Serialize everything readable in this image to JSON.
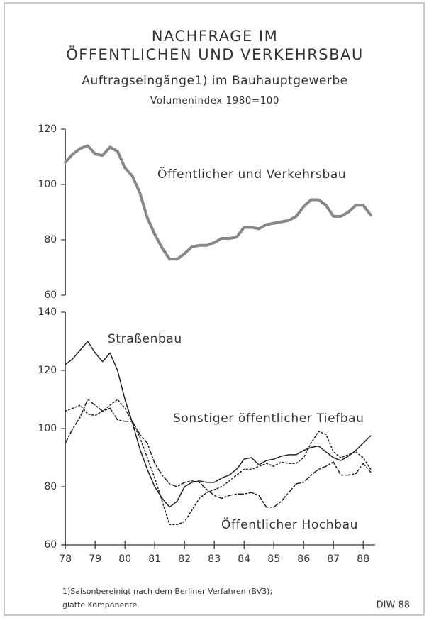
{
  "title": [
    "NACHFRAGE IM",
    "ÖFFENTLICHEN UND VERKEHRSBAU"
  ],
  "subtitle": "Auftragseingänge1) im Bauhauptgewerbe",
  "note": "Volumenindex 1980=100",
  "footnote": [
    "1)Saisonbereinigt nach dem Berliner Verfahren (BV3);",
    "glatte Komponente."
  ],
  "source": "DIW 88",
  "chart_data": [
    {
      "type": "line",
      "x": [
        78,
        78.25,
        78.5,
        78.75,
        79,
        79.25,
        79.5,
        79.75,
        80,
        80.25,
        80.5,
        80.75,
        81,
        81.25,
        81.5,
        81.75,
        82,
        82.25,
        82.5,
        82.75,
        83,
        83.25,
        83.5,
        83.75,
        84,
        84.25,
        84.5,
        84.75,
        85,
        85.25,
        85.5,
        85.75,
        86,
        86.25,
        86.5,
        86.75,
        87,
        87.25,
        87.5,
        87.75,
        88,
        88.25
      ],
      "xlim": [
        77.9,
        88.4
      ],
      "ylim": [
        60,
        120
      ],
      "yticks": [
        60,
        80,
        100,
        120
      ],
      "series": [
        {
          "name": "Öffentlicher und Verkehrsbau",
          "color": "#888888",
          "dash": "solid",
          "line_width": 4,
          "values": [
            108,
            111,
            113,
            114,
            111,
            110.5,
            113.5,
            112,
            106,
            103,
            97,
            88,
            82,
            77,
            73,
            73,
            75,
            77.5,
            78,
            78,
            79,
            80.5,
            80.5,
            81,
            84.5,
            84.5,
            84,
            85.5,
            86,
            86.5,
            87,
            88.5,
            92,
            94.5,
            94.5,
            92.5,
            88.5,
            88.5,
            90,
            92.5,
            92.5,
            89
          ]
        }
      ]
    },
    {
      "type": "line",
      "x": [
        78,
        78.25,
        78.5,
        78.75,
        79,
        79.25,
        79.5,
        79.75,
        80,
        80.25,
        80.5,
        80.75,
        81,
        81.25,
        81.5,
        81.75,
        82,
        82.25,
        82.5,
        82.75,
        83,
        83.25,
        83.5,
        83.75,
        84,
        84.25,
        84.5,
        84.75,
        85,
        85.25,
        85.5,
        85.75,
        86,
        86.25,
        86.5,
        86.75,
        87,
        87.25,
        87.5,
        87.75,
        88,
        88.25
      ],
      "xlim": [
        77.9,
        88.4
      ],
      "xticks": [
        78,
        79,
        80,
        81,
        82,
        83,
        84,
        85,
        86,
        87,
        88
      ],
      "ylim": [
        60,
        140
      ],
      "yticks": [
        60,
        80,
        100,
        120,
        140
      ],
      "series": [
        {
          "name": "Straßenbau",
          "color": "#222222",
          "dash": "solid",
          "line_width": 1.5,
          "values": [
            122,
            124,
            127,
            130,
            126,
            123,
            126,
            120,
            110,
            102,
            93,
            86,
            80,
            76,
            73,
            75,
            80,
            81.5,
            82,
            81.5,
            81.5,
            83,
            84,
            86,
            89.5,
            90,
            87.5,
            89,
            89.5,
            90.5,
            91,
            91,
            92.5,
            93.5,
            94,
            92,
            90,
            89,
            90.5,
            92.5,
            95,
            97.5
          ]
        },
        {
          "name": "Sonstiger öffentlicher Tiefbau",
          "color": "#222222",
          "dash": "dotted",
          "line_width": 1.5,
          "values": [
            106,
            107,
            108,
            105,
            104.5,
            106,
            108,
            110,
            107,
            102,
            97,
            90,
            83,
            75,
            67,
            67,
            68,
            72,
            76,
            78,
            79,
            80,
            82,
            84,
            86,
            86,
            87,
            88,
            87,
            88.5,
            88,
            88,
            90,
            95,
            99,
            98,
            92,
            90,
            91,
            92,
            90,
            86
          ]
        },
        {
          "name": "Öffentlicher Hochbau",
          "color": "#222222",
          "dash": "dashdot",
          "line_width": 1.5,
          "values": [
            95,
            100,
            104,
            110,
            108,
            106,
            107,
            103,
            102.5,
            102.5,
            98,
            95,
            88,
            84,
            81,
            80,
            81.5,
            82,
            81.5,
            79,
            77,
            76,
            77,
            77.5,
            77.5,
            78,
            77,
            73,
            73,
            75,
            78,
            81,
            81.5,
            84,
            86,
            87,
            88.5,
            84,
            84,
            84.5,
            88,
            85
          ]
        }
      ]
    }
  ]
}
